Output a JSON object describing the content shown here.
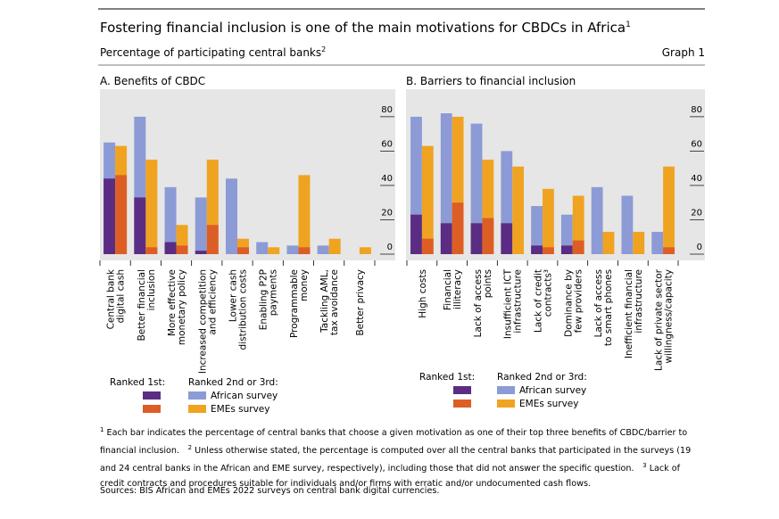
{
  "header": {
    "title": "Fostering financial inclusion is one of the main motivations for CBDCs in Africa",
    "title_note": "1",
    "subtitle": "Percentage of participating central banks",
    "subtitle_note": "2",
    "label": "Graph 1"
  },
  "chart_data": [
    {
      "type": "bar",
      "title": "A. Benefits of CBDC",
      "categories": [
        [
          "Central bank",
          "digital cash"
        ],
        [
          "Better financial",
          "inclusion"
        ],
        [
          "More effective",
          "monetary policy"
        ],
        [
          "Increased competition",
          "and efficiency"
        ],
        [
          "Lower cash",
          "distribution costs"
        ],
        [
          "Enabling P2P",
          "payments"
        ],
        [
          "Programmable",
          "money"
        ],
        [
          "Tackling AML,",
          "tax avoidance"
        ],
        [
          "Better privacy"
        ]
      ],
      "ylim": [
        0,
        95
      ],
      "yticks": [
        0,
        20,
        40,
        60,
        80
      ],
      "legend": {
        "ranked_1st": "Ranked 1st:",
        "ranked_other": "Ranked 2nd or 3rd:"
      },
      "series": [
        {
          "name": "African survey",
          "color": "#8c9bd6",
          "values": [
            65,
            80,
            39,
            33,
            44,
            7,
            5,
            5,
            0
          ],
          "ranked_1st": {
            "color": "#5b2c83",
            "values": [
              44,
              33,
              7,
              2,
              0,
              0,
              0,
              0,
              0
            ]
          }
        },
        {
          "name": "EMEs survey",
          "color": "#f0a321",
          "values": [
            63,
            55,
            17,
            55,
            9,
            4,
            46,
            9,
            4
          ],
          "ranked_1st": {
            "color": "#dd5e25",
            "values": [
              46,
              4,
              5,
              17,
              4,
              0,
              4,
              0,
              0
            ]
          }
        }
      ]
    },
    {
      "type": "bar",
      "title": "B. Barriers to financial inclusion",
      "categories": [
        [
          "High costs"
        ],
        [
          "Financial",
          "illiteracy"
        ],
        [
          "Lack of access",
          "points"
        ],
        [
          "Insufficient ICT",
          "infrastructure"
        ],
        [
          "Lack of credit",
          "contracts³"
        ],
        [
          "Dominance by",
          "few providers"
        ],
        [
          "Lack of access",
          "to smart phones"
        ],
        [
          "Inefficient financial",
          "infrastructure"
        ],
        [
          "Lack of private sector",
          "willingness/capacity"
        ]
      ],
      "ylim": [
        0,
        95
      ],
      "yticks": [
        0,
        20,
        40,
        60,
        80
      ],
      "legend": {
        "ranked_1st": "Ranked 1st:",
        "ranked_other": "Ranked 2nd or 3rd:"
      },
      "series": [
        {
          "name": "African survey",
          "color": "#8c9bd6",
          "values": [
            80,
            82,
            76,
            60,
            28,
            23,
            39,
            34,
            13
          ],
          "ranked_1st": {
            "color": "#5b2c83",
            "values": [
              23,
              18,
              18,
              18,
              5,
              5,
              0,
              0,
              0
            ]
          }
        },
        {
          "name": "EMEs survey",
          "color": "#f0a321",
          "values": [
            63,
            80,
            55,
            51,
            38,
            34,
            13,
            13,
            51
          ],
          "ranked_1st": {
            "color": "#dd5e25",
            "values": [
              9,
              30,
              21,
              0,
              4,
              8,
              0,
              0,
              4
            ]
          }
        }
      ]
    }
  ],
  "footnotes": [
    {
      "mark": "1",
      "text": "Each bar indicates the percentage of central banks that choose a given motivation as one of their top three benefits of CBDC/barrier to financial inclusion."
    },
    {
      "mark": "2",
      "text": "Unless otherwise stated, the percentage is computed over all the central banks that participated in the surveys (19 and 24 central banks in the African and EME survey, respectively), including those that did not answer the specific question."
    },
    {
      "mark": "3",
      "text": "Lack of credit contracts and procedures suitable for individuals and/or firms with erratic and/or undocumented cash flows."
    }
  ],
  "sources": "Sources: BIS African and EMEs 2022 surveys on central bank digital currencies."
}
